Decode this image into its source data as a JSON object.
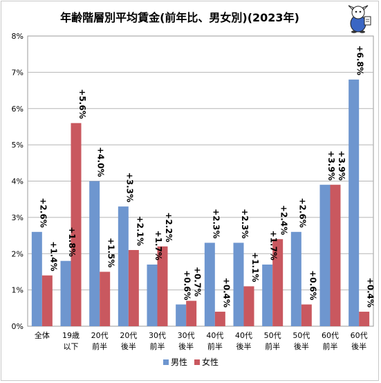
{
  "chart_data": {
    "type": "bar",
    "title": "年齢階層別平均賃金(前年比、男女別)(2023年)",
    "categories": [
      [
        "全体"
      ],
      [
        "19歳",
        "以下"
      ],
      [
        "20代",
        "前半"
      ],
      [
        "20代",
        "後半"
      ],
      [
        "30代",
        "前半"
      ],
      [
        "30代",
        "後半"
      ],
      [
        "40代",
        "前半"
      ],
      [
        "40代",
        "後半"
      ],
      [
        "50代",
        "前半"
      ],
      [
        "50代",
        "後半"
      ],
      [
        "60代",
        "前半"
      ],
      [
        "60代",
        "後半"
      ]
    ],
    "series": [
      {
        "name": "男性",
        "color": "#6e96cf",
        "values": [
          2.6,
          1.8,
          4.0,
          3.3,
          1.7,
          0.6,
          2.3,
          2.3,
          1.7,
          2.6,
          3.9,
          6.8
        ],
        "labels": [
          "+2.6%",
          "+1.8%",
          "+4.0%",
          "+3.3%",
          "+1.7%",
          "+0.6%",
          "+2.3%",
          "+2.3%",
          "+1.7%",
          "+2.6%",
          "+3.9%",
          "+6.8%"
        ]
      },
      {
        "name": "女性",
        "color": "#c9585f",
        "values": [
          1.4,
          5.6,
          1.5,
          2.1,
          2.2,
          0.7,
          0.4,
          1.1,
          2.4,
          0.6,
          3.9,
          0.4
        ],
        "labels": [
          "+1.4%",
          "+5.6%",
          "+1.5%",
          "+2.1%",
          "+2.2%",
          "+0.7%",
          "+0.4%",
          "+1.1%",
          "+2.4%",
          "+0.6%",
          "+3.9%",
          "+0.4%"
        ]
      }
    ],
    "ylim": [
      0,
      8
    ],
    "yticks": [
      "0%",
      "1%",
      "2%",
      "3%",
      "4%",
      "5%",
      "6%",
      "7%",
      "8%"
    ],
    "grid": true,
    "legend_position": "bottom"
  },
  "icons": {
    "mascot": "mascot-icon"
  }
}
